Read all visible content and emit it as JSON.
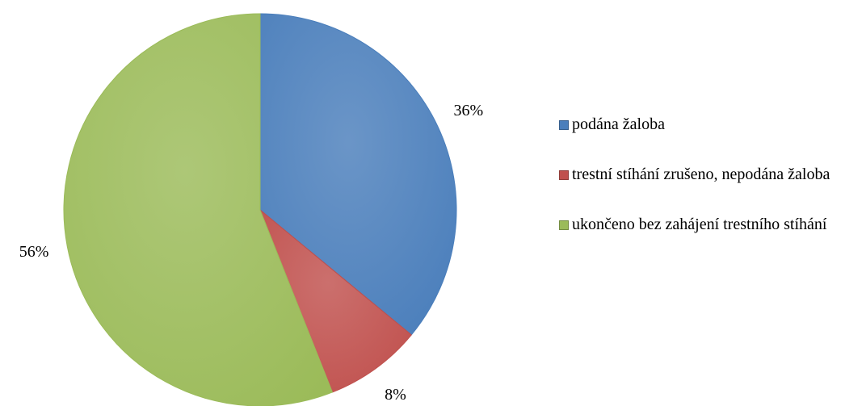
{
  "chart_data": {
    "type": "pie",
    "categories": [
      "podána žaloba",
      "trestní stíhání zrušeno, nepodána žaloba",
      "ukončeno bez zahájení trestního stíhání"
    ],
    "values": [
      36,
      8,
      56
    ],
    "value_labels": [
      "36%",
      "8%",
      "56%"
    ],
    "colors": [
      "#4a7ebb",
      "#c0504d",
      "#9bbb59"
    ],
    "legend": "right"
  }
}
